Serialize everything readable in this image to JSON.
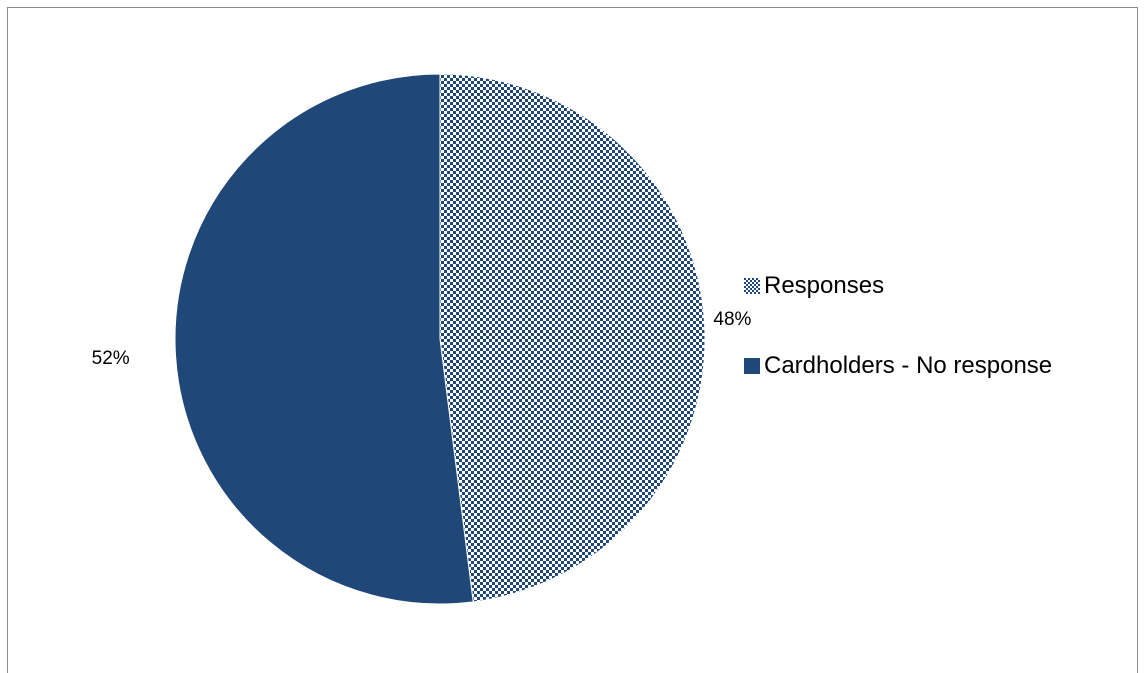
{
  "chart_data": {
    "type": "pie",
    "title": "",
    "slices": [
      {
        "label": "Responses",
        "value": 48,
        "display": "48%",
        "color": "#1f4878",
        "pattern": "checker"
      },
      {
        "label": "Cardholders - No response",
        "value": 52,
        "display": "52%",
        "color": "#1f4878",
        "pattern": "solid"
      }
    ],
    "legend_position": "right",
    "start_angle": "12 o'clock",
    "direction": "clockwise"
  }
}
